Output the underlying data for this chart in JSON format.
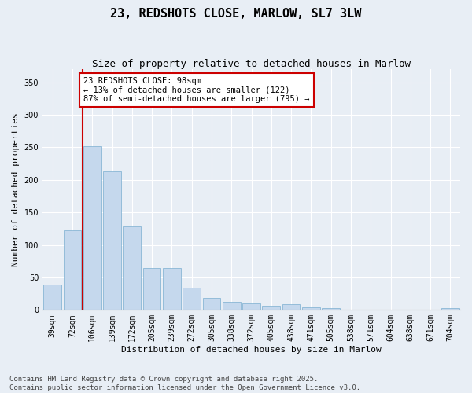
{
  "title": "23, REDSHOTS CLOSE, MARLOW, SL7 3LW",
  "subtitle": "Size of property relative to detached houses in Marlow",
  "xlabel": "Distribution of detached houses by size in Marlow",
  "ylabel": "Number of detached properties",
  "categories": [
    "39sqm",
    "72sqm",
    "106sqm",
    "139sqm",
    "172sqm",
    "205sqm",
    "239sqm",
    "272sqm",
    "305sqm",
    "338sqm",
    "372sqm",
    "405sqm",
    "438sqm",
    "471sqm",
    "505sqm",
    "538sqm",
    "571sqm",
    "604sqm",
    "638sqm",
    "671sqm",
    "704sqm"
  ],
  "values": [
    39,
    122,
    252,
    213,
    128,
    65,
    65,
    34,
    18,
    13,
    10,
    7,
    9,
    4,
    3,
    1,
    1,
    0,
    0,
    0,
    3
  ],
  "bar_color": "#c5d8ed",
  "bar_edge_color": "#7aaed0",
  "redline_index": 1.5,
  "annotation_text": "23 REDSHOTS CLOSE: 98sqm\n← 13% of detached houses are smaller (122)\n87% of semi-detached houses are larger (795) →",
  "annotation_box_color": "#ffffff",
  "annotation_box_edge": "#cc0000",
  "redline_color": "#cc0000",
  "ylim": [
    0,
    370
  ],
  "yticks": [
    0,
    50,
    100,
    150,
    200,
    250,
    300,
    350
  ],
  "footer": "Contains HM Land Registry data © Crown copyright and database right 2025.\nContains public sector information licensed under the Open Government Licence v3.0.",
  "background_color": "#e8eef5",
  "plot_bg_color": "#e8eef5",
  "title_fontsize": 11,
  "subtitle_fontsize": 9,
  "axis_label_fontsize": 8,
  "tick_fontsize": 7,
  "footer_fontsize": 6.5,
  "annotation_fontsize": 7.5
}
